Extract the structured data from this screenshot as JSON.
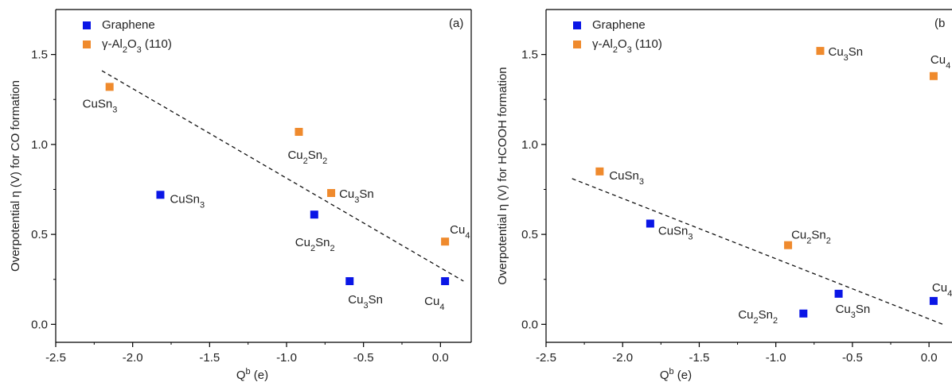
{
  "colors": {
    "graphene": "#0a16e6",
    "alumina": "#ef8a2d"
  },
  "chart_data": [
    {
      "type": "scatter",
      "panel_label": "(a)",
      "xlabel": "Q^b (e)",
      "ylabel": "Overpotential η (V) for CO formation",
      "xlim": [
        -2.5,
        0.2
      ],
      "ylim": [
        -0.1,
        1.75
      ],
      "xticks": [
        -2.5,
        -2.0,
        -1.5,
        -1.0,
        -0.5,
        0.0
      ],
      "yticks": [
        0.0,
        0.5,
        1.0,
        1.5
      ],
      "legend_position": "top-left",
      "series": [
        {
          "name": "Graphene",
          "color_key": "graphene",
          "points": [
            {
              "x": -1.82,
              "y": 0.72,
              "label": "CuSn3"
            },
            {
              "x": -0.82,
              "y": 0.61,
              "label": "Cu2Sn2"
            },
            {
              "x": -0.59,
              "y": 0.24,
              "label": "Cu3Sn"
            },
            {
              "x": 0.03,
              "y": 0.24,
              "label": "Cu4"
            }
          ]
        },
        {
          "name": "γ-Al2O3 (110)",
          "color_key": "alumina",
          "points": [
            {
              "x": -2.15,
              "y": 1.32,
              "label": "CuSn3"
            },
            {
              "x": -0.92,
              "y": 1.07,
              "label": "Cu2Sn2"
            },
            {
              "x": -0.71,
              "y": 0.73,
              "label": "Cu3Sn"
            },
            {
              "x": 0.03,
              "y": 0.46,
              "label": "Cu4"
            }
          ]
        }
      ],
      "trendline": {
        "style": "dashed",
        "x": [
          -2.2,
          0.15
        ],
        "y": [
          1.41,
          0.24
        ]
      }
    },
    {
      "type": "scatter",
      "panel_label": "(b",
      "xlabel": "Q^b (e)",
      "ylabel": "Overpotential η (V) for HCOOH formation",
      "xlim": [
        -2.5,
        0.15
      ],
      "ylim": [
        -0.1,
        1.75
      ],
      "xticks": [
        -2.5,
        -2.0,
        -1.5,
        -1.0,
        -0.5,
        0.0
      ],
      "yticks": [
        0.0,
        0.5,
        1.0,
        1.5
      ],
      "legend_position": "top-left",
      "series": [
        {
          "name": "Graphene",
          "color_key": "graphene",
          "points": [
            {
              "x": -1.82,
              "y": 0.56,
              "label": "CuSn3"
            },
            {
              "x": -0.82,
              "y": 0.06,
              "label": "Cu2Sn2"
            },
            {
              "x": -0.59,
              "y": 0.17,
              "label": "Cu3Sn"
            },
            {
              "x": 0.03,
              "y": 0.13,
              "label": "Cu4"
            }
          ]
        },
        {
          "name": "γ-Al2O3 (110)",
          "color_key": "alumina",
          "points": [
            {
              "x": -2.15,
              "y": 0.85,
              "label": "CuSn3"
            },
            {
              "x": -0.92,
              "y": 0.44,
              "label": "Cu2Sn2"
            },
            {
              "x": -0.71,
              "y": 1.52,
              "label": "Cu3Sn"
            },
            {
              "x": 0.03,
              "y": 1.38,
              "label": "Cu4"
            }
          ]
        }
      ],
      "trendline": {
        "style": "dashed",
        "x": [
          -2.33,
          0.09
        ],
        "y": [
          0.81,
          0.0
        ]
      }
    }
  ]
}
